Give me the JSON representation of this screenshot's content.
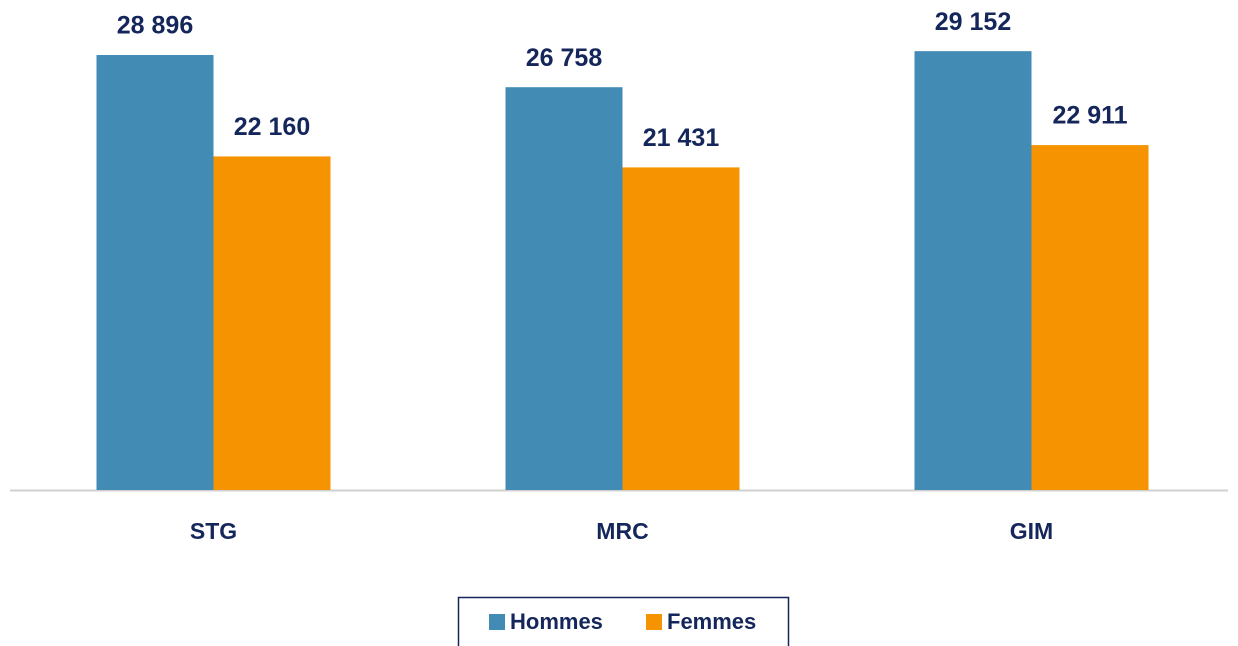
{
  "chart_data": {
    "type": "bar",
    "categories": [
      "STG",
      "MRC",
      "GIM"
    ],
    "series": [
      {
        "name": "Hommes",
        "color": "#428bb5",
        "values": [
          28896,
          26758,
          29152
        ],
        "value_labels": [
          "28 896",
          "26 758",
          "29 152"
        ]
      },
      {
        "name": "Femmes",
        "color": "#f59300",
        "values": [
          22160,
          21431,
          22911
        ],
        "value_labels": [
          "22 160",
          "21 431",
          "22 911"
        ]
      }
    ],
    "ylim": [
      0,
      30000
    ],
    "legend": "bottom"
  }
}
